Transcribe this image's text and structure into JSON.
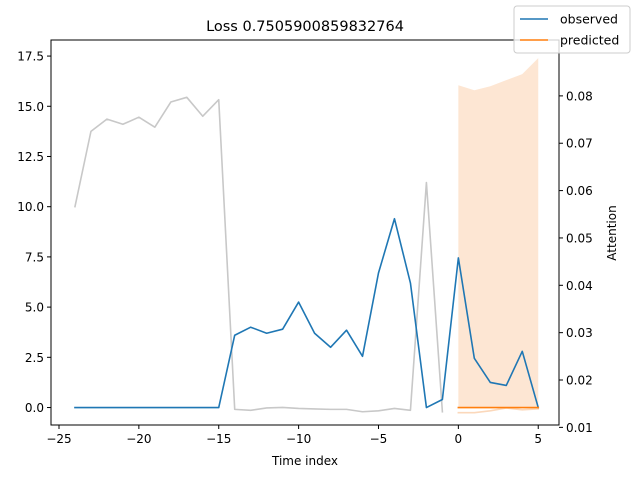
{
  "chart_data": {
    "type": "line",
    "title": "Loss 0.7505900859832764",
    "xlabel": "Time index",
    "ylabel": "",
    "y2label": "Attention",
    "xlim": [
      -25.5,
      6.3
    ],
    "ylim": [
      -0.87,
      18.3
    ],
    "y2lim": [
      0.0105,
      0.0918
    ],
    "x_ticks": [
      -25,
      -20,
      -15,
      -10,
      -5,
      0,
      5
    ],
    "y_ticks": [
      0.0,
      2.5,
      5.0,
      7.5,
      10.0,
      12.5,
      15.0,
      17.5
    ],
    "y_tick_labels": [
      "0.0",
      "2.5",
      "5.0",
      "7.5",
      "10.0",
      "12.5",
      "15.0",
      "17.5"
    ],
    "y2_ticks": [
      0.01,
      0.02,
      0.03,
      0.04,
      0.05,
      0.06,
      0.07,
      0.08
    ],
    "y2_tick_labels": [
      "0.01",
      "0.02",
      "0.03",
      "0.04",
      "0.05",
      "0.06",
      "0.07",
      "0.08"
    ],
    "grid": false,
    "legend_position": "top-right",
    "series": [
      {
        "name": "observed",
        "axis": "left",
        "color": "#1f77b4",
        "x": [
          -24,
          -23,
          -22,
          -21,
          -20,
          -19,
          -18,
          -17,
          -16,
          -15,
          -14,
          -13,
          -12,
          -11,
          -10,
          -9,
          -8,
          -7,
          -6,
          -5,
          -4,
          -3,
          -2,
          -1,
          0,
          1,
          2,
          3,
          4,
          5
        ],
        "y": [
          0,
          0,
          0,
          0,
          0,
          0,
          0,
          0,
          0,
          0,
          3.6,
          4.0,
          3.7,
          3.9,
          5.25,
          3.7,
          3.0,
          3.85,
          2.55,
          6.7,
          9.4,
          6.2,
          0,
          0.4,
          7.45,
          2.45,
          1.25,
          1.1,
          2.8,
          0
        ]
      },
      {
        "name": "predicted",
        "axis": "left",
        "color": "#ff7f0e",
        "x": [
          0,
          1,
          2,
          3,
          4,
          5
        ],
        "y": [
          0,
          0,
          0,
          0,
          0,
          0
        ],
        "band_lower": [
          0,
          0,
          0,
          0,
          0,
          0
        ],
        "band_upper": [
          16.05,
          15.8,
          16.0,
          16.3,
          16.6,
          17.4
        ],
        "band_color": "#fde6d3"
      },
      {
        "name": "attention",
        "axis": "right",
        "color": "#c8c8c8",
        "x": [
          -24,
          -23,
          -22,
          -21,
          -20,
          -19,
          -18,
          -17,
          -16,
          -15,
          -14,
          -13,
          -12,
          -11,
          -10,
          -9,
          -8,
          -7,
          -6,
          -5,
          -4,
          -3,
          -2,
          -1
        ],
        "y": [
          0.0566,
          0.0725,
          0.0751,
          0.074,
          0.0755,
          0.0734,
          0.0787,
          0.0797,
          0.0757,
          0.0792,
          0.0138,
          0.0136,
          0.0141,
          0.0142,
          0.014,
          0.0139,
          0.0138,
          0.0138,
          0.0133,
          0.0135,
          0.014,
          0.0136,
          0.0617,
          0.0133
        ]
      },
      {
        "name": "attention-future",
        "axis": "right",
        "color": "#fbd8bb",
        "x": [
          0,
          1,
          2,
          3,
          4,
          5
        ],
        "y": [
          0.0131,
          0.0131,
          0.0135,
          0.0141,
          0.0137,
          0.0139
        ]
      }
    ],
    "legend": [
      "observed",
      "predicted"
    ]
  }
}
